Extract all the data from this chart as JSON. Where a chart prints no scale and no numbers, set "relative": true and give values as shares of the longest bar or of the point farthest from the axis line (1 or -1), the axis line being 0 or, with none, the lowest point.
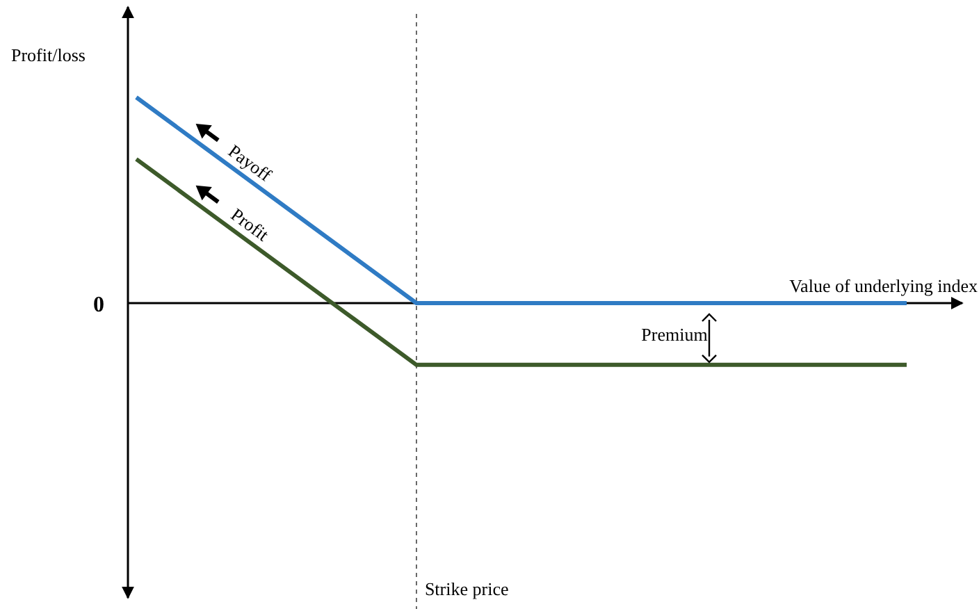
{
  "chart_data": {
    "type": "line",
    "relative": true,
    "ylabel": "Profit/loss",
    "xlabel": "Value of underlying index",
    "categories": [
      null,
      null,
      null,
      null,
      null,
      null,
      null,
      null,
      null,
      null,
      null,
      null
    ],
    "series": [
      {
        "name": "Payoff",
        "color": "#2f7bc4",
        "values": [
          1,
          0.75,
          0.5,
          0.25,
          0,
          0,
          0,
          0,
          0,
          0,
          0,
          0
        ]
      },
      {
        "name": "Profit",
        "color": "#3d5a2a",
        "values": [
          0.7,
          0.45,
          0.2,
          -0.05,
          -0.3,
          -0.3,
          -0.3,
          -0.3,
          -0.3,
          -0.3,
          -0.3,
          -0.3
        ]
      }
    ],
    "annotations": [
      "0",
      "Premium",
      "Strike price"
    ],
    "marker": "none",
    "line_style": "solid"
  }
}
